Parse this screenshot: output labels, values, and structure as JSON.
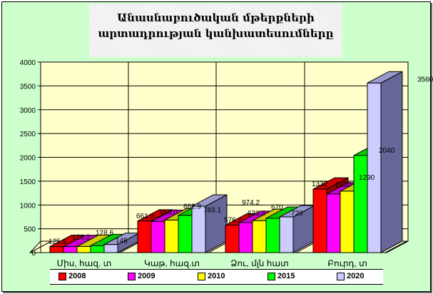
{
  "chart_data": {
    "type": "bar",
    "style": "3d-clustered-column",
    "title": "Անասնաբուծական մթերքների արտադրության կանխատեսումները",
    "categories": [
      "Միս, հազ. տ",
      "Կաթ, հազ.տ",
      "Ձու, մլն հատ",
      "Բուրդ, տ"
    ],
    "series": [
      {
        "name": "2008",
        "color": "#FF0000",
        "values": [
          125.9,
          661.9,
          576.1,
          1332
        ]
      },
      {
        "name": "2009",
        "color": "#FF00FF",
        "values": [
          126.2,
          653.0,
          630.4,
          1230
        ]
      },
      {
        "name": "2010",
        "color": "#FFFF00",
        "values": [
          128.6,
          682.9,
          670,
          1290
        ]
      },
      {
        "name": "2015",
        "color": "#00FF00",
        "values": [
          145,
          783.1,
          720,
          2040
        ]
      },
      {
        "name": "2020",
        "color": "#CCCCFF",
        "values": [
          170,
          974.2,
          750,
          3560
        ]
      }
    ],
    "data_labels": [
      [
        "125.9",
        "661.9",
        "576.1",
        "1332"
      ],
      [
        "126.2",
        "653.0",
        "630.4",
        "1230"
      ],
      [
        "128.6",
        "682.9",
        "670",
        "1290"
      ],
      [
        "145",
        "783.1",
        "720",
        "2040"
      ],
      [
        "170",
        "974.2",
        "750",
        "3560"
      ]
    ],
    "ylim": [
      0,
      4000
    ],
    "yticks": [
      "0",
      "500",
      "1000",
      "1500",
      "2000",
      "2500",
      "3000",
      "3500",
      "4000"
    ],
    "grid": true,
    "legend": "bottom",
    "background": "#CCFFCC",
    "wall": "#FFFFCC"
  }
}
